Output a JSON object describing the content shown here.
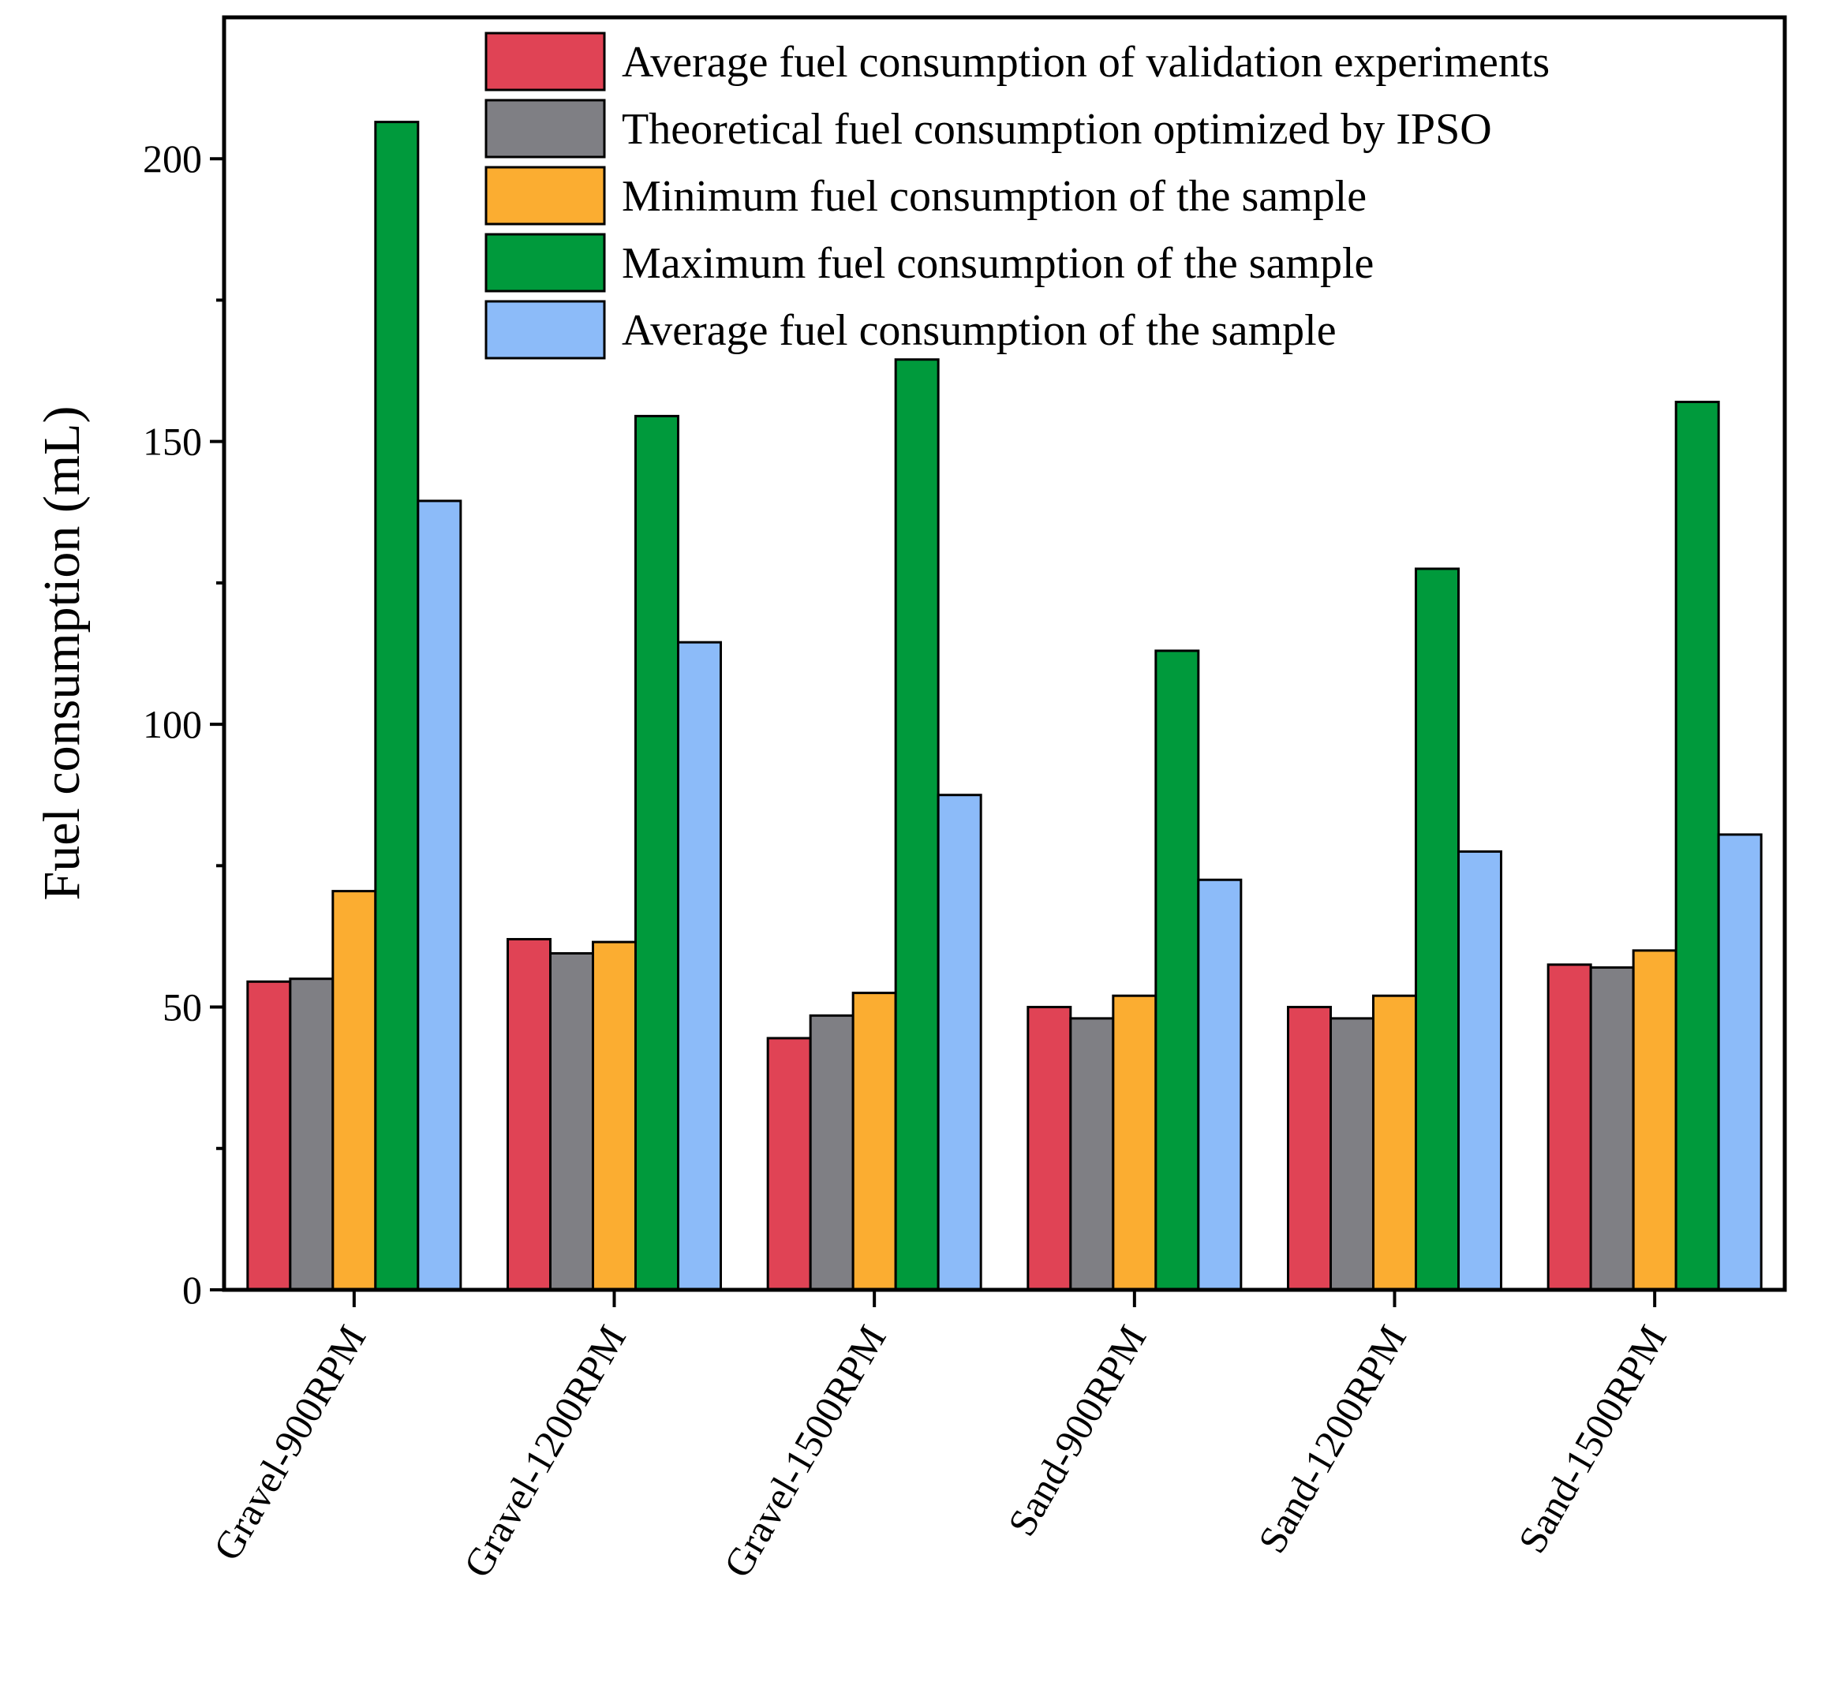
{
  "chart_data": {
    "type": "bar",
    "title": "",
    "xlabel": "",
    "ylabel": "Fuel consumption (mL)",
    "ylim": [
      0,
      225
    ],
    "yticks": [
      0,
      50,
      100,
      150,
      200
    ],
    "grid": false,
    "legend_position": "top-right",
    "categories": [
      "Gravel-900RPM",
      "Gravel-1200RPM",
      "Gravel-1500RPM",
      "Sand-900RPM",
      "Sand-1200RPM",
      "Sand-1500RPM"
    ],
    "series": [
      {
        "name": "Average fuel consumption of validation experiments",
        "color": "#e04355",
        "values": [
          54.5,
          62,
          44.5,
          50,
          50,
          57.5
        ]
      },
      {
        "name": "Theoretical fuel consumption optimized by IPSO",
        "color": "#7f7f84",
        "values": [
          55,
          59.5,
          48.5,
          48,
          48,
          57
        ]
      },
      {
        "name": "Minimum fuel consumption of the sample",
        "color": "#fbad31",
        "values": [
          70.5,
          61.5,
          52.5,
          52,
          52,
          60
        ]
      },
      {
        "name": "Maximum fuel consumption of the sample",
        "color": "#009a3c",
        "values": [
          206.5,
          154.5,
          164.5,
          113,
          127.5,
          157
        ]
      },
      {
        "name": "Average fuel consumption of the sample",
        "color": "#8cbbf9",
        "values": [
          139.5,
          114.5,
          87.5,
          72.5,
          77.5,
          80.5
        ]
      }
    ]
  }
}
